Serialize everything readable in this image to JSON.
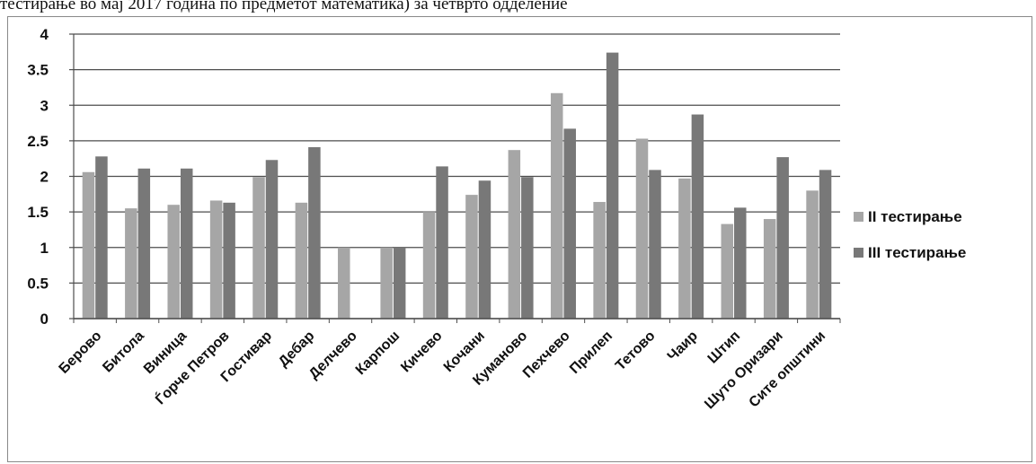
{
  "caption": "тестирање во мај 2017 година по предметот математика) за четврто одделение",
  "chart_data": {
    "type": "bar",
    "title": "тестирање во мај 2017 година по предметот математика) за четврто одделение",
    "xlabel": "",
    "ylabel": "",
    "ylim": [
      0,
      4
    ],
    "yticks": [
      "0",
      "0.5",
      "1",
      "1.5",
      "2",
      "2.5",
      "3",
      "3.5",
      "4"
    ],
    "grid": true,
    "legend_position": "right",
    "categories": [
      "Берово",
      "Битола",
      "Виница",
      "Ѓорче Петров",
      "Гостивар",
      "Дебар",
      "Делчево",
      "Карпош",
      "Кичево",
      "Кочани",
      "Куманово",
      "Пехчево",
      "Прилеп",
      "Тетово",
      "Чаир",
      "Штип",
      "Шуто Оризари",
      "Сите општини"
    ],
    "series": [
      {
        "name": "II тестирање",
        "color": "#a6a6a6",
        "values": [
          2.06,
          1.55,
          1.6,
          1.66,
          1.99,
          1.63,
          1.0,
          1.0,
          1.5,
          1.74,
          2.37,
          3.17,
          1.64,
          2.53,
          1.97,
          1.33,
          1.4,
          1.8
        ]
      },
      {
        "name": "III тестирање",
        "color": "#787878",
        "values": [
          2.28,
          2.11,
          2.11,
          1.63,
          2.23,
          2.41,
          null,
          1.0,
          2.14,
          1.94,
          1.99,
          2.67,
          3.74,
          2.09,
          2.87,
          1.56,
          2.27,
          2.09
        ]
      }
    ]
  }
}
